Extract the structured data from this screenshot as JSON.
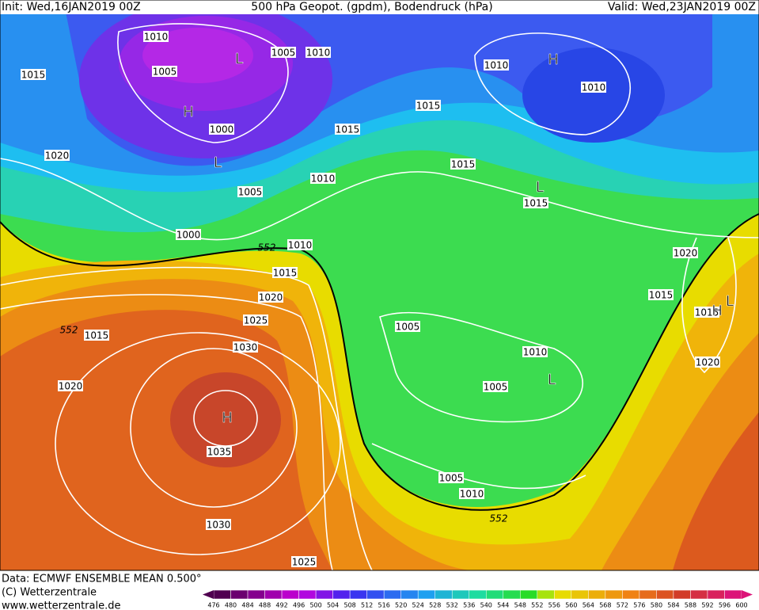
{
  "header": {
    "init": "Init: Wed,16JAN2019 00Z",
    "title": "500 hPa Geopot. (gpdm), Bodendruck (hPa)",
    "valid": "Valid: Wed,23JAN2019 00Z"
  },
  "isobar_labels": [
    "1010",
    "1005",
    "1010",
    "1005",
    "1015",
    "1000",
    "1015",
    "1015",
    "1010",
    "1010",
    "1020",
    "1005",
    "1010",
    "1015",
    "1015",
    "1000",
    "1010",
    "552",
    "1015",
    "1020",
    "1025",
    "1030",
    "552",
    "1015",
    "1020",
    "1035",
    "1030",
    "1025",
    "1005",
    "1010",
    "1005",
    "1005",
    "1010",
    "552",
    "1020",
    "1015",
    "1015",
    "1020"
  ],
  "pressure_centers": [
    "L",
    "H",
    "L",
    "H",
    "L",
    "H",
    "L",
    "L",
    "H"
  ],
  "footer": {
    "source": "Data: ECMWF ENSEMBLE MEAN 0.500°",
    "copyright": "(C) Wetterzentrale",
    "url": "www.wetterzentrale.de"
  },
  "legend": {
    "levels": [
      476,
      480,
      484,
      488,
      492,
      496,
      500,
      504,
      508,
      512,
      516,
      520,
      524,
      528,
      532,
      536,
      540,
      544,
      548,
      552,
      556,
      560,
      564,
      568,
      572,
      576,
      580,
      584,
      588,
      592,
      596,
      600
    ]
  }
}
